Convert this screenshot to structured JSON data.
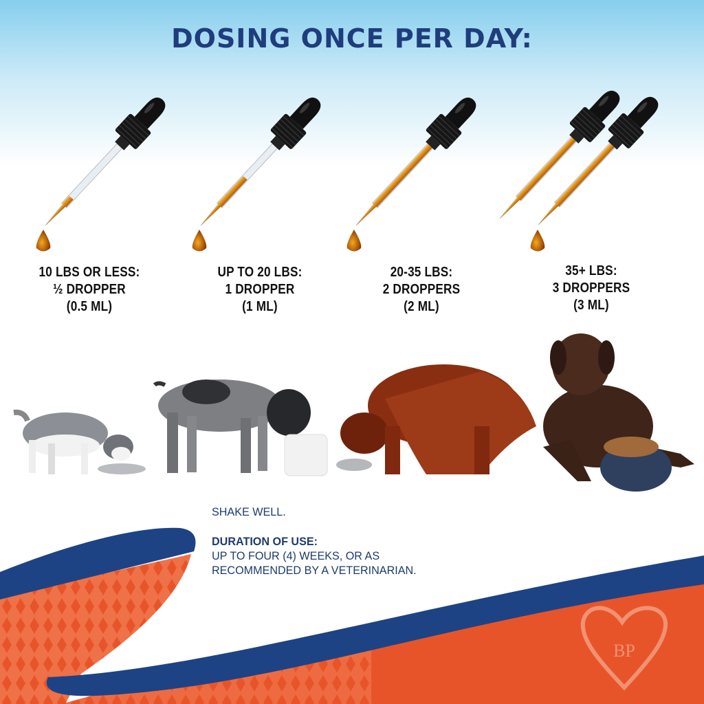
{
  "title": "DOSING ONCE PER DAY:",
  "doses": [
    {
      "weight": "10 LBS OR LESS:",
      "amount": "½ DROPPER",
      "volume": "(0.5 ML)",
      "droppers_shown": 1,
      "fill": 0.35
    },
    {
      "weight": "UP TO 20 LBS:",
      "amount": "1 DROPPER",
      "volume": "(1 ML)",
      "droppers_shown": 1,
      "fill": 0.6
    },
    {
      "weight": "20-35 LBS:",
      "amount": "2 DROPPERS",
      "volume": "(2 ML)",
      "droppers_shown": 1,
      "fill": 1.0
    },
    {
      "weight": "35+ LBS:",
      "amount": "3 DROPPERS",
      "volume": "(3 ML)",
      "droppers_shown": 2,
      "fill": 1.0
    }
  ],
  "instructions": {
    "shake": "SHAKE WELL.",
    "duration_heading": "DURATION OF USE:",
    "duration_line1": "UP TO FOUR (4) WEEKS, OR AS",
    "duration_line2": "RECOMMENDED BY A VETERINARIAN."
  },
  "logo": {
    "letters": "BP"
  },
  "colors": {
    "navy": "#1f3d7c",
    "orange": "#e8542a",
    "oil": "#e08a10"
  }
}
